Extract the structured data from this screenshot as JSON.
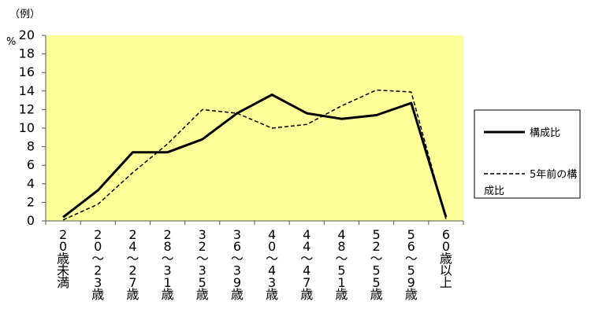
{
  "chart_data": {
    "type": "line",
    "unit_note": "（例）",
    "y_unit": "%",
    "ylim": [
      0,
      20
    ],
    "y_ticks": [
      0,
      2,
      4,
      6,
      8,
      10,
      12,
      14,
      16,
      18,
      20
    ],
    "categories": [
      [
        "2",
        "0",
        "歳",
        "未",
        "満"
      ],
      [
        "2",
        "0",
        "〜",
        "2",
        "3",
        "歳"
      ],
      [
        "2",
        "4",
        "〜",
        "2",
        "7",
        "歳"
      ],
      [
        "2",
        "8",
        "〜",
        "3",
        "1",
        "歳"
      ],
      [
        "3",
        "2",
        "〜",
        "3",
        "5",
        "歳"
      ],
      [
        "3",
        "6",
        "〜",
        "3",
        "9",
        "歳"
      ],
      [
        "4",
        "0",
        "〜",
        "4",
        "3",
        "歳"
      ],
      [
        "4",
        "4",
        "〜",
        "4",
        "7",
        "歳"
      ],
      [
        "4",
        "8",
        "〜",
        "5",
        "1",
        "歳"
      ],
      [
        "5",
        "2",
        "〜",
        "5",
        "5",
        "歳"
      ],
      [
        "5",
        "6",
        "〜",
        "5",
        "9",
        "歳"
      ],
      [
        "6",
        "0",
        "歳",
        "以",
        "上"
      ]
    ],
    "series": [
      {
        "name": "構成比",
        "style": "solid",
        "values": [
          0.4,
          3.3,
          7.4,
          7.4,
          8.8,
          11.6,
          13.6,
          11.6,
          11.0,
          11.4,
          12.7,
          0.4
        ]
      },
      {
        "name": "5年前の構成比",
        "style": "dashed",
        "values": [
          0.1,
          1.8,
          5.2,
          8.3,
          12.0,
          11.6,
          10.0,
          10.4,
          12.4,
          14.1,
          13.9,
          0.2
        ]
      }
    ],
    "legend": {
      "position": "right",
      "entries": [
        "構成比",
        "5年前の構成比"
      ]
    },
    "colors": {
      "plot_bg": "#ffff99",
      "line": "#000000"
    },
    "grid": false
  }
}
